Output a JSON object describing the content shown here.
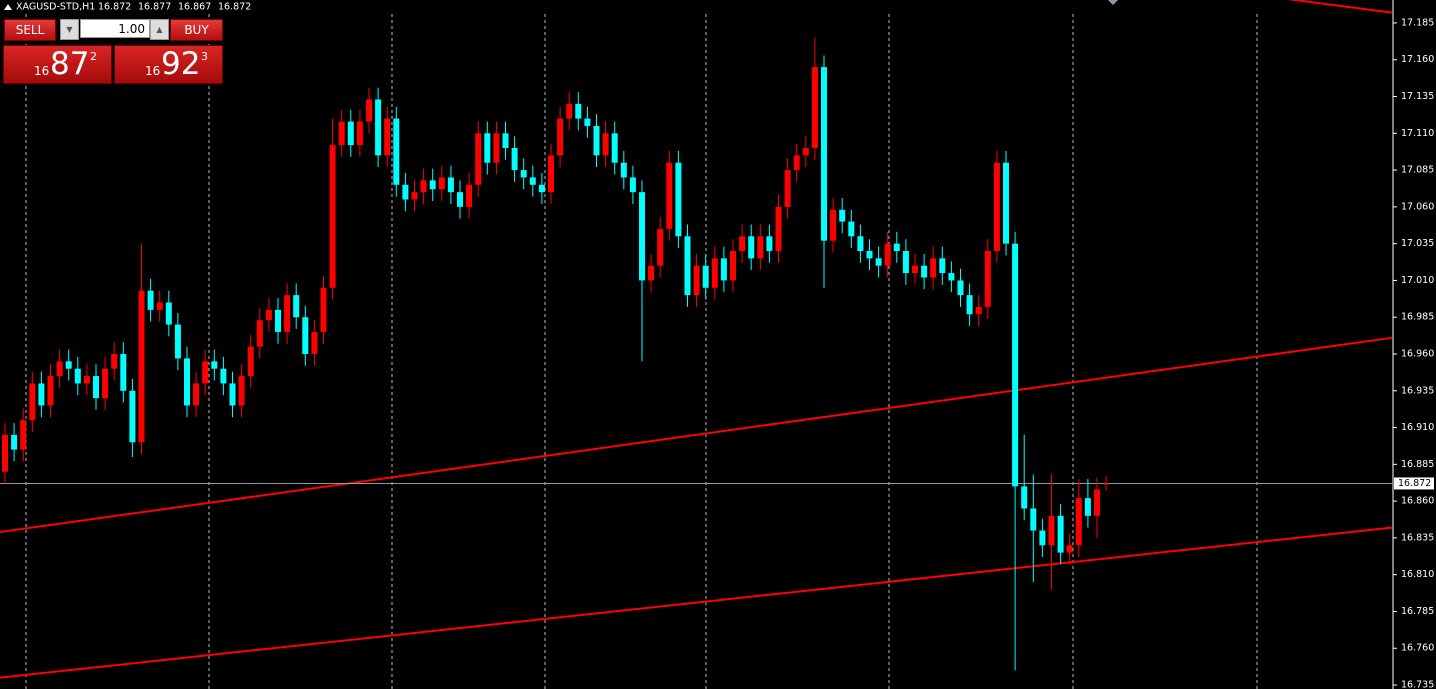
{
  "chart_data": {
    "type": "candlestick",
    "title": "XAGUSD-STD,H1",
    "open": [
      16.88,
      16.905,
      16.895,
      16.915,
      16.94,
      16.925,
      16.945,
      16.955,
      16.95,
      16.94,
      16.945,
      16.93,
      16.95,
      16.96,
      16.935,
      16.9,
      17.003,
      16.99,
      16.995,
      16.98,
      16.957,
      16.925,
      16.94,
      16.955,
      16.95,
      16.94,
      16.925,
      16.945,
      16.965,
      16.983,
      16.99,
      16.975,
      17.0,
      16.985,
      16.96,
      16.975,
      17.005,
      17.102,
      17.118,
      17.102,
      17.118,
      17.133,
      17.095,
      17.12,
      17.075,
      17.065,
      17.07,
      17.078,
      17.072,
      17.08,
      17.07,
      17.06,
      17.075,
      17.11,
      17.09,
      17.11,
      17.1,
      17.085,
      17.08,
      17.075,
      17.07,
      17.095,
      17.12,
      17.13,
      17.12,
      17.115,
      17.095,
      17.11,
      17.09,
      17.08,
      17.07,
      17.01,
      17.02,
      17.045,
      17.09,
      17.04,
      17.0,
      17.02,
      17.005,
      17.025,
      17.01,
      17.03,
      17.04,
      17.025,
      17.04,
      17.03,
      17.06,
      17.085,
      17.095,
      17.1,
      17.155,
      17.037,
      17.058,
      17.05,
      17.04,
      17.03,
      17.025,
      17.02,
      17.035,
      17.03,
      17.015,
      17.02,
      17.012,
      17.025,
      17.015,
      17.01,
      17.0,
      16.987,
      16.992,
      17.03,
      17.09,
      17.035,
      16.87,
      16.855,
      16.84,
      16.83,
      16.85,
      16.825,
      16.83,
      16.862,
      16.85,
      16.872
    ],
    "high": [
      16.913,
      16.913,
      16.923,
      16.948,
      16.948,
      16.953,
      16.963,
      16.963,
      16.958,
      16.953,
      16.953,
      16.958,
      16.968,
      16.968,
      16.943,
      17.035,
      17.011,
      17.003,
      17.003,
      16.988,
      16.965,
      16.948,
      16.963,
      16.963,
      16.958,
      16.948,
      16.953,
      16.973,
      16.991,
      16.998,
      16.998,
      17.008,
      17.008,
      16.993,
      16.983,
      17.013,
      17.12,
      17.126,
      17.126,
      17.126,
      17.141,
      17.141,
      17.128,
      17.128,
      17.083,
      17.078,
      17.086,
      17.086,
      17.088,
      17.088,
      17.078,
      17.083,
      17.118,
      17.118,
      17.118,
      17.118,
      17.108,
      17.093,
      17.088,
      17.083,
      17.103,
      17.128,
      17.138,
      17.138,
      17.128,
      17.123,
      17.118,
      17.118,
      17.098,
      17.088,
      17.078,
      17.028,
      17.053,
      17.098,
      17.098,
      17.048,
      17.028,
      17.028,
      17.033,
      17.033,
      17.038,
      17.048,
      17.048,
      17.048,
      17.048,
      17.068,
      17.093,
      17.103,
      17.108,
      17.175,
      17.163,
      17.066,
      17.066,
      17.058,
      17.048,
      17.038,
      17.033,
      17.043,
      17.043,
      17.038,
      17.028,
      17.028,
      17.033,
      17.033,
      17.023,
      17.018,
      17.008,
      17.0,
      17.038,
      17.098,
      17.098,
      17.043,
      16.905,
      16.878,
      16.848,
      16.878,
      16.858,
      16.838,
      16.875,
      16.875,
      16.876,
      16.877
    ],
    "low": [
      16.872,
      16.887,
      16.887,
      16.907,
      16.917,
      16.917,
      16.937,
      16.942,
      16.932,
      16.932,
      16.922,
      16.922,
      16.942,
      16.927,
      16.89,
      16.892,
      16.982,
      16.982,
      16.972,
      16.949,
      16.917,
      16.917,
      16.932,
      16.942,
      16.932,
      16.917,
      16.917,
      16.937,
      16.957,
      16.975,
      16.967,
      16.967,
      16.977,
      16.952,
      16.952,
      16.967,
      16.997,
      17.094,
      17.094,
      17.094,
      17.11,
      17.087,
      17.087,
      17.067,
      17.057,
      17.057,
      17.062,
      17.064,
      17.064,
      17.062,
      17.052,
      17.052,
      17.067,
      17.082,
      17.082,
      17.092,
      17.077,
      17.072,
      17.067,
      17.062,
      17.062,
      17.087,
      17.112,
      17.112,
      17.107,
      17.087,
      17.087,
      17.082,
      17.072,
      17.062,
      16.955,
      17.002,
      17.012,
      17.037,
      17.032,
      16.992,
      16.992,
      16.997,
      16.997,
      17.002,
      17.002,
      17.022,
      17.017,
      17.017,
      17.022,
      17.022,
      17.052,
      17.077,
      17.087,
      17.092,
      17.005,
      17.029,
      17.042,
      17.032,
      17.022,
      17.017,
      17.012,
      17.012,
      17.022,
      17.007,
      17.007,
      17.004,
      17.004,
      17.007,
      17.002,
      16.992,
      16.979,
      16.979,
      16.984,
      17.022,
      17.027,
      16.745,
      16.847,
      16.805,
      16.822,
      16.8,
      16.817,
      16.817,
      16.822,
      16.842,
      16.835,
      16.867
    ],
    "close": [
      16.905,
      16.895,
      16.915,
      16.94,
      16.925,
      16.945,
      16.955,
      16.95,
      16.94,
      16.945,
      16.93,
      16.95,
      16.96,
      16.935,
      16.9,
      17.003,
      16.99,
      16.995,
      16.98,
      16.957,
      16.925,
      16.94,
      16.955,
      16.95,
      16.94,
      16.925,
      16.945,
      16.965,
      16.983,
      16.99,
      16.975,
      17.0,
      16.985,
      16.96,
      16.975,
      17.005,
      17.102,
      17.118,
      17.102,
      17.118,
      17.133,
      17.095,
      17.12,
      17.075,
      17.065,
      17.07,
      17.078,
      17.072,
      17.08,
      17.07,
      17.06,
      17.075,
      17.11,
      17.09,
      17.11,
      17.1,
      17.085,
      17.08,
      17.075,
      17.07,
      17.095,
      17.12,
      17.13,
      17.12,
      17.115,
      17.095,
      17.11,
      17.09,
      17.08,
      17.07,
      17.01,
      17.02,
      17.045,
      17.09,
      17.04,
      17.0,
      17.02,
      17.005,
      17.025,
      17.01,
      17.03,
      17.04,
      17.025,
      17.04,
      17.03,
      17.06,
      17.085,
      17.095,
      17.1,
      17.155,
      17.037,
      17.058,
      17.05,
      17.04,
      17.03,
      17.025,
      17.02,
      17.035,
      17.03,
      17.015,
      17.02,
      17.012,
      17.025,
      17.015,
      17.01,
      17.0,
      16.987,
      16.992,
      17.03,
      17.09,
      17.035,
      16.87,
      16.855,
      16.84,
      16.83,
      16.85,
      16.825,
      16.83,
      16.862,
      16.85,
      16.868,
      16.872
    ],
    "up_color": "#ff0000",
    "down_color": "#00ffff",
    "ylim": [
      16.7323,
      17.2006
    ],
    "yticks": [
      17.185,
      {
        "value": 17.16,
        "label": "17.160"
      },
      17.135,
      {
        "value": 17.11,
        "label": "17.110"
      },
      17.085,
      {
        "value": 17.06,
        "label": "17.060"
      },
      17.035,
      {
        "value": 17.01,
        "label": "17.010"
      },
      16.985,
      {
        "value": 16.96,
        "label": "16.960"
      },
      16.935,
      {
        "value": 16.91,
        "label": "16.910"
      },
      16.885,
      {
        "value": 16.86,
        "label": "16.860"
      },
      16.835,
      {
        "value": 16.81,
        "label": "16.810"
      },
      16.785,
      {
        "value": 16.76,
        "label": "16.760"
      },
      16.735
    ],
    "grid": false,
    "price_line": true,
    "trendlines": [
      {
        "color": "#ff0000",
        "x": [
          -0.55,
          152.4
        ],
        "y": [
          16.839,
          16.971
        ]
      },
      {
        "color": "#ff0000",
        "x": [
          -0.55,
          152.4
        ],
        "y": [
          16.74,
          16.842
        ]
      },
      {
        "color": "#ff0000",
        "x": [
          141.2,
          152.4
        ],
        "y": [
          17.201,
          17.192
        ]
      }
    ]
  },
  "trade_panel": {
    "sell": "SELL",
    "buy": "BUY",
    "volume": "1.00",
    "bid": {
      "prefix": "16",
      "big": "87",
      "point": "2"
    },
    "ask": {
      "prefix": "16",
      "big": "92",
      "point": "3"
    }
  }
}
